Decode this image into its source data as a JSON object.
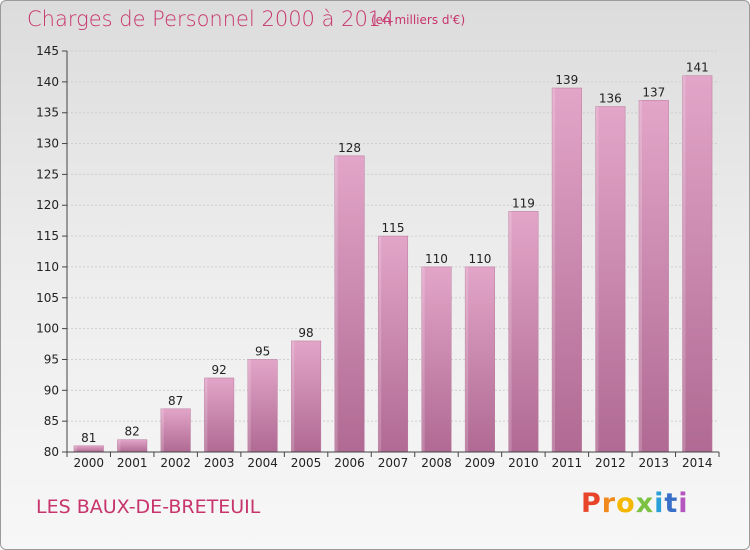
{
  "header": {
    "title": "Charges de Personnel 2000 à 2014",
    "subtitle": "(en milliers d'€)"
  },
  "footer": {
    "commune": "LES BAUX-DE-BRETEUIL",
    "logo_letters": [
      "P",
      "r",
      "o",
      "x",
      "i",
      "t",
      "i"
    ],
    "logo_colors": [
      "#e8442a",
      "#f08a1c",
      "#f5b800",
      "#7cc242",
      "#2a9fd8",
      "#3a6fc8",
      "#b455c0"
    ]
  },
  "chart_data": {
    "type": "bar",
    "title": "Charges de Personnel 2000 à 2014",
    "subtitle": "(en milliers d'€)",
    "xlabel": "",
    "ylabel": "",
    "categories": [
      "2000",
      "2001",
      "2002",
      "2003",
      "2004",
      "2005",
      "2006",
      "2007",
      "2008",
      "2009",
      "2010",
      "2011",
      "2012",
      "2013",
      "2014"
    ],
    "values": [
      81,
      82,
      87,
      92,
      95,
      98,
      128,
      115,
      110,
      110,
      119,
      139,
      136,
      137,
      141
    ],
    "ylim": [
      80,
      145
    ],
    "yticks": [
      80,
      85,
      90,
      95,
      100,
      105,
      110,
      115,
      120,
      125,
      130,
      135,
      140,
      145
    ],
    "grid": true,
    "bar_color": "#c97aa6",
    "bar_color_light": "#e2a5c8",
    "bar_color_dark": "#b06a93"
  }
}
